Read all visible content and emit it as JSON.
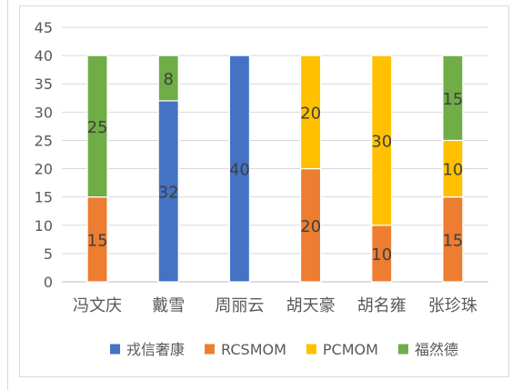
{
  "chart_data": {
    "type": "bar",
    "stacked": true,
    "categories": [
      "冯文庆",
      "戴雪",
      "周丽云",
      "胡天豪",
      "胡名雍",
      "张珍珠"
    ],
    "series": [
      {
        "name": "戎信奢康",
        "color": "#4472C4",
        "values": [
          0,
          32,
          40,
          0,
          0,
          0
        ]
      },
      {
        "name": "RCSMOM",
        "color": "#ED7D31",
        "values": [
          15,
          0,
          0,
          20,
          10,
          15
        ]
      },
      {
        "name": "PCMOM",
        "color": "#FFC000",
        "values": [
          0,
          0,
          0,
          20,
          30,
          10
        ]
      },
      {
        "name": "福然德",
        "color": "#70AD47",
        "values": [
          25,
          8,
          0,
          0,
          0,
          15
        ]
      }
    ],
    "ylim": [
      0,
      45
    ],
    "yticks": [
      0,
      5,
      10,
      15,
      20,
      25,
      30,
      35,
      40,
      45
    ],
    "grid": true,
    "legend": "bottom"
  }
}
